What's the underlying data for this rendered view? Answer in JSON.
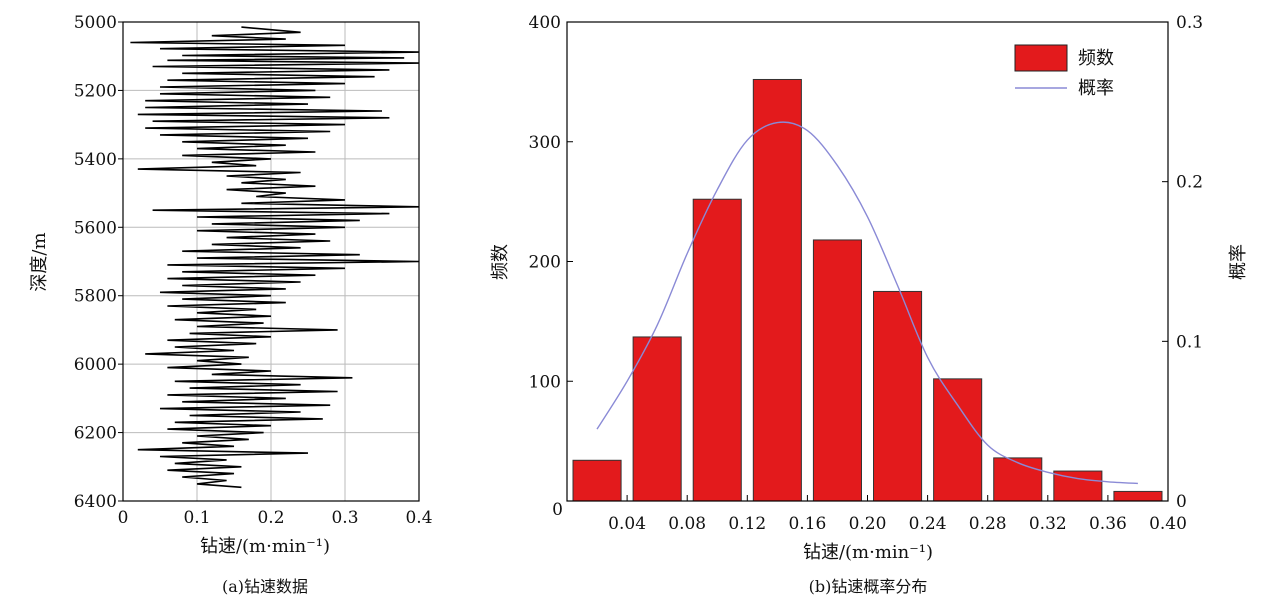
{
  "chart_data": [
    {
      "id": "a",
      "type": "line",
      "caption": "(a)钻速数据",
      "xlabel": "钻速/(m·min⁻¹)",
      "ylabel": "深度/m",
      "xlim": [
        0,
        0.4
      ],
      "ylim": [
        5000,
        6400
      ],
      "y_inverted": true,
      "grid": true,
      "x_ticks": [
        0,
        0.1,
        0.2,
        0.3,
        0.4
      ],
      "x_tick_labels": [
        "0",
        "0.1",
        "0.2",
        "0.3",
        "0.4"
      ],
      "y_ticks": [
        5000,
        5200,
        5400,
        5600,
        5800,
        6000,
        6200,
        6400
      ],
      "y_tick_labels": [
        "5000",
        "5200",
        "5400",
        "5600",
        "5800",
        "6000",
        "6200",
        "6400"
      ],
      "series_color": "#000000",
      "series": [
        {
          "depth": [
            5015,
            5030,
            5040,
            5050,
            5060,
            5068,
            5078,
            5088,
            5098,
            5105,
            5112,
            5120,
            5130,
            5140,
            5150,
            5160,
            5170,
            5180,
            5190,
            5200,
            5210,
            5220,
            5230,
            5240,
            5250,
            5260,
            5270,
            5280,
            5290,
            5300,
            5310,
            5320,
            5330,
            5340,
            5350,
            5360,
            5370,
            5380,
            5390,
            5400,
            5410,
            5420,
            5430,
            5440,
            5450,
            5460,
            5470,
            5480,
            5490,
            5500,
            5510,
            5520,
            5530,
            5540,
            5550,
            5560,
            5570,
            5580,
            5590,
            5600,
            5610,
            5620,
            5630,
            5640,
            5650,
            5660,
            5670,
            5680,
            5690,
            5700,
            5710,
            5720,
            5730,
            5740,
            5750,
            5760,
            5770,
            5780,
            5790,
            5800,
            5810,
            5820,
            5830,
            5840,
            5850,
            5860,
            5870,
            5880,
            5890,
            5900,
            5910,
            5920,
            5930,
            5940,
            5950,
            5960,
            5970,
            5980,
            5990,
            6000,
            6010,
            6020,
            6030,
            6040,
            6050,
            6060,
            6070,
            6080,
            6090,
            6100,
            6110,
            6120,
            6130,
            6140,
            6150,
            6160,
            6170,
            6180,
            6190,
            6200,
            6210,
            6220,
            6230,
            6240,
            6250,
            6260,
            6270,
            6280,
            6290,
            6300,
            6310,
            6320,
            6330,
            6340,
            6350,
            6360
          ],
          "rate": [
            0.16,
            0.24,
            0.12,
            0.22,
            0.01,
            0.3,
            0.05,
            0.4,
            0.08,
            0.38,
            0.06,
            0.4,
            0.04,
            0.36,
            0.08,
            0.34,
            0.06,
            0.3,
            0.05,
            0.26,
            0.05,
            0.28,
            0.03,
            0.25,
            0.03,
            0.35,
            0.02,
            0.36,
            0.04,
            0.3,
            0.03,
            0.28,
            0.05,
            0.25,
            0.08,
            0.22,
            0.1,
            0.26,
            0.08,
            0.2,
            0.12,
            0.18,
            0.02,
            0.24,
            0.14,
            0.22,
            0.16,
            0.26,
            0.14,
            0.22,
            0.18,
            0.3,
            0.16,
            0.4,
            0.04,
            0.36,
            0.1,
            0.32,
            0.12,
            0.3,
            0.1,
            0.26,
            0.14,
            0.28,
            0.12,
            0.24,
            0.08,
            0.32,
            0.1,
            0.4,
            0.06,
            0.3,
            0.08,
            0.26,
            0.06,
            0.24,
            0.08,
            0.22,
            0.05,
            0.2,
            0.08,
            0.22,
            0.06,
            0.18,
            0.1,
            0.2,
            0.07,
            0.19,
            0.1,
            0.29,
            0.09,
            0.2,
            0.06,
            0.18,
            0.07,
            0.15,
            0.03,
            0.17,
            0.1,
            0.16,
            0.06,
            0.2,
            0.12,
            0.31,
            0.07,
            0.24,
            0.09,
            0.29,
            0.06,
            0.22,
            0.08,
            0.28,
            0.05,
            0.24,
            0.09,
            0.27,
            0.07,
            0.2,
            0.06,
            0.19,
            0.1,
            0.17,
            0.08,
            0.15,
            0.02,
            0.25,
            0.05,
            0.14,
            0.07,
            0.16,
            0.06,
            0.15,
            0.08,
            0.14,
            0.1,
            0.16
          ]
        }
      ]
    },
    {
      "id": "b",
      "type": "bar",
      "caption": "(b)钻速概率分布",
      "xlabel": "钻速/(m·min⁻¹)",
      "ylabel": "频数",
      "y2label": "概率",
      "xlim": [
        0,
        0.4
      ],
      "ylim": [
        0,
        400
      ],
      "y2lim": [
        0,
        0.3
      ],
      "x_ticks": [
        0.04,
        0.08,
        0.12,
        0.16,
        0.2,
        0.24,
        0.28,
        0.32,
        0.36,
        0.4
      ],
      "x_tick_labels": [
        "0.04",
        "0.08",
        "0.12",
        "0.16",
        "0.20",
        "0.24",
        "0.28",
        "0.32",
        "0.36",
        "0.40"
      ],
      "x_origin_label": "0",
      "y_ticks": [
        100,
        200,
        300,
        400
      ],
      "y_tick_labels": [
        "100",
        "200",
        "300",
        "400"
      ],
      "y2_ticks": [
        0,
        0.1,
        0.2,
        0.3
      ],
      "y2_tick_labels": [
        "0",
        "0.1",
        "0.2",
        "0.3"
      ],
      "bar_color": "#e31a1c",
      "line_color": "#8a8ad6",
      "legend": {
        "position": "top-right",
        "bars_label": "频数",
        "line_label": "概率"
      },
      "bin_centers": [
        0.02,
        0.06,
        0.1,
        0.14,
        0.18,
        0.22,
        0.26,
        0.3,
        0.34,
        0.38
      ],
      "bar_width": 0.032,
      "values": [
        34,
        137,
        252,
        352,
        218,
        175,
        102,
        36,
        25,
        8
      ],
      "probability_curve": {
        "x": [
          0.02,
          0.04,
          0.06,
          0.08,
          0.1,
          0.12,
          0.14,
          0.16,
          0.18,
          0.2,
          0.22,
          0.24,
          0.26,
          0.28,
          0.3,
          0.32,
          0.34,
          0.36,
          0.38
        ],
        "y": [
          0.045,
          0.075,
          0.11,
          0.155,
          0.195,
          0.226,
          0.237,
          0.232,
          0.21,
          0.178,
          0.135,
          0.09,
          0.06,
          0.035,
          0.024,
          0.018,
          0.014,
          0.012,
          0.011
        ]
      }
    }
  ]
}
